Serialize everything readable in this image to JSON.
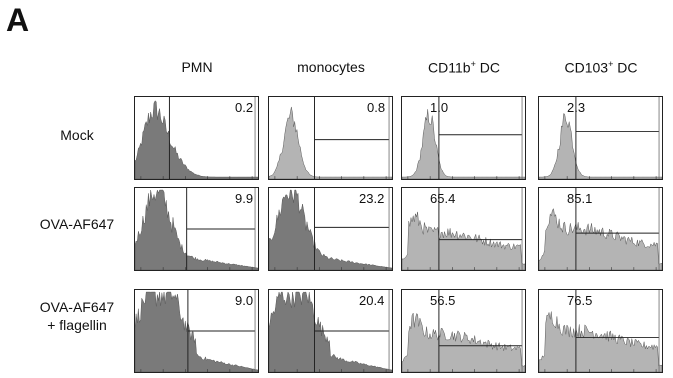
{
  "panel_label": "A",
  "chart_data": {
    "type": "histogram-grid",
    "columns": [
      {
        "name": "PMN",
        "sup": ""
      },
      {
        "name": "monocytes",
        "sup": ""
      },
      {
        "name": "CD11b",
        "sup": "+",
        "suffix": " DC"
      },
      {
        "name": "CD103",
        "sup": "+",
        "suffix": " DC"
      }
    ],
    "rows": [
      {
        "label": [
          "Mock"
        ],
        "values": [
          "0.2",
          "0.8",
          "1.0",
          "2.3"
        ]
      },
      {
        "label": [
          "OVA-AF647"
        ],
        "values": [
          "9.9",
          "23.2",
          "65.4",
          "85.1"
        ]
      },
      {
        "label": [
          "OVA-AF647",
          "+ flagellin"
        ],
        "values": [
          "9.0",
          "20.4",
          "56.5",
          "76.5"
        ]
      }
    ],
    "colors": {
      "dark_fill": "#7a7a7a",
      "light_fill": "#b4b4b4",
      "outline": "#222222"
    }
  }
}
